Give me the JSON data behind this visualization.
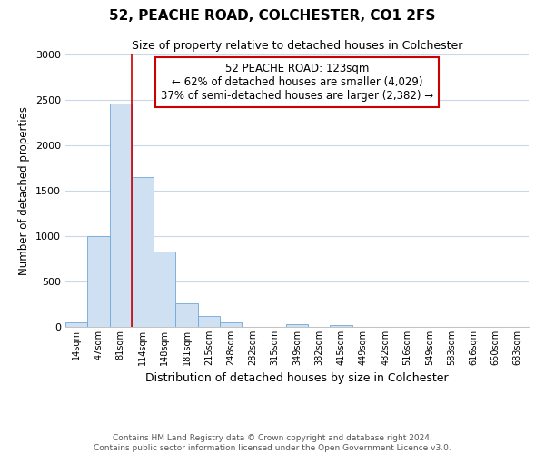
{
  "title": "52, PEACHE ROAD, COLCHESTER, CO1 2FS",
  "subtitle": "Size of property relative to detached houses in Colchester",
  "xlabel": "Distribution of detached houses by size in Colchester",
  "ylabel": "Number of detached properties",
  "footer_line1": "Contains HM Land Registry data © Crown copyright and database right 2024.",
  "footer_line2": "Contains public sector information licensed under the Open Government Licence v3.0.",
  "bin_labels": [
    "14sqm",
    "47sqm",
    "81sqm",
    "114sqm",
    "148sqm",
    "181sqm",
    "215sqm",
    "248sqm",
    "282sqm",
    "315sqm",
    "349sqm",
    "382sqm",
    "415sqm",
    "449sqm",
    "482sqm",
    "516sqm",
    "549sqm",
    "583sqm",
    "616sqm",
    "650sqm",
    "683sqm"
  ],
  "bar_values": [
    55,
    1000,
    2460,
    1650,
    830,
    265,
    120,
    50,
    0,
    0,
    35,
    0,
    20,
    0,
    0,
    0,
    0,
    0,
    0,
    0,
    0
  ],
  "bar_color": "#cfe0f3",
  "bar_edge_color": "#6fa8d8",
  "vline_color": "#cc0000",
  "annotation_title": "52 PEACHE ROAD: 123sqm",
  "annotation_line1": "← 62% of detached houses are smaller (4,029)",
  "annotation_line2": "37% of semi-detached houses are larger (2,382) →",
  "annotation_box_color": "#ffffff",
  "annotation_box_edge": "#cc0000",
  "ylim": [
    0,
    3000
  ],
  "yticks": [
    0,
    500,
    1000,
    1500,
    2000,
    2500,
    3000
  ],
  "background_color": "#ffffff",
  "grid_color": "#c8d8e8",
  "title_fontsize": 11,
  "subtitle_fontsize": 9
}
